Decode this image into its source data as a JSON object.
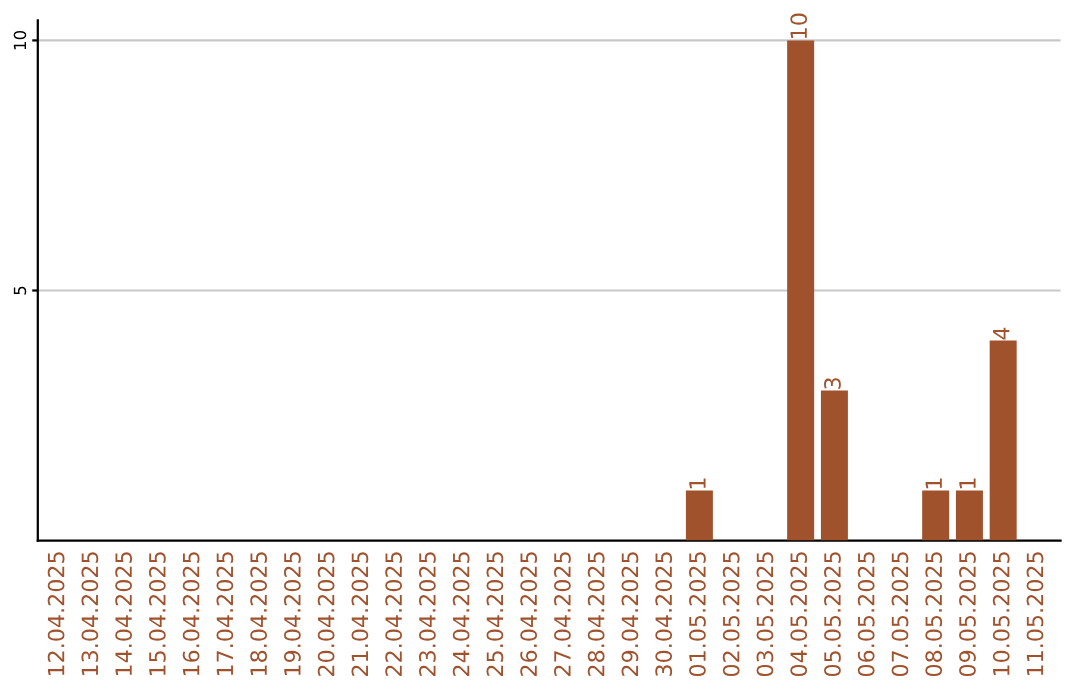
{
  "chart_data": {
    "type": "bar",
    "categories": [
      "12.04.2025",
      "13.04.2025",
      "14.04.2025",
      "15.04.2025",
      "16.04.2025",
      "17.04.2025",
      "18.04.2025",
      "19.04.2025",
      "20.04.2025",
      "21.04.2025",
      "22.04.2025",
      "23.04.2025",
      "24.04.2025",
      "25.04.2025",
      "26.04.2025",
      "27.04.2025",
      "28.04.2025",
      "29.04.2025",
      "30.04.2025",
      "01.05.2025",
      "02.05.2025",
      "03.05.2025",
      "04.05.2025",
      "05.05.2025",
      "06.05.2025",
      "07.05.2025",
      "08.05.2025",
      "09.05.2025",
      "10.05.2025",
      "11.05.2025"
    ],
    "values": [
      0,
      0,
      0,
      0,
      0,
      0,
      0,
      0,
      0,
      0,
      0,
      0,
      0,
      0,
      0,
      0,
      0,
      0,
      0,
      1,
      0,
      0,
      10,
      3,
      0,
      0,
      1,
      1,
      4,
      0
    ],
    "value_labels": [
      null,
      null,
      null,
      null,
      null,
      null,
      null,
      null,
      null,
      null,
      null,
      null,
      null,
      null,
      null,
      null,
      null,
      null,
      null,
      "1",
      null,
      null,
      "10",
      "3",
      null,
      null,
      "1",
      "1",
      "4",
      null
    ],
    "color": "#a0522d",
    "ylim": [
      0,
      10.4
    ],
    "yticks": [
      5,
      10
    ],
    "grid": "y"
  }
}
